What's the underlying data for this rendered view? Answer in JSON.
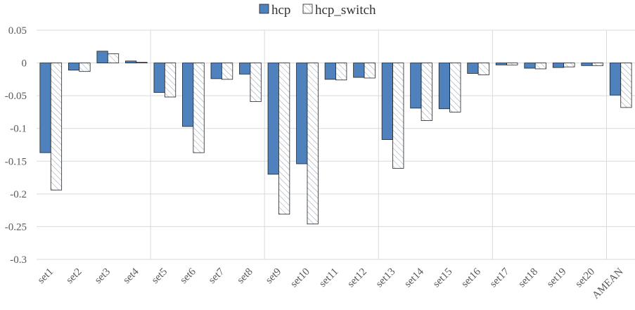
{
  "chart_data": {
    "type": "bar",
    "categories": [
      "set1",
      "set2",
      "set3",
      "set4",
      "set5",
      "set6",
      "set7",
      "set8",
      "set9",
      "set10",
      "set11",
      "set12",
      "set13",
      "set14",
      "set15",
      "set16",
      "set17",
      "set18",
      "set19",
      "set20",
      "AMEAN"
    ],
    "series": [
      {
        "name": "hcp",
        "color": "#4f81bd",
        "values": [
          -0.137,
          -0.011,
          0.018,
          0.003,
          -0.045,
          -0.097,
          -0.024,
          -0.017,
          -0.17,
          -0.154,
          -0.025,
          -0.022,
          -0.117,
          -0.069,
          -0.07,
          -0.016,
          -0.003,
          -0.008,
          -0.007,
          -0.004,
          -0.049
        ]
      },
      {
        "name": "hcp_switch",
        "color": "#8c9aaf",
        "hatch": true,
        "values": [
          -0.194,
          -0.013,
          0.014,
          0.001,
          -0.052,
          -0.137,
          -0.025,
          -0.059,
          -0.231,
          -0.246,
          -0.026,
          -0.023,
          -0.161,
          -0.088,
          -0.075,
          -0.018,
          -0.003,
          -0.009,
          -0.006,
          -0.004,
          -0.068
        ]
      }
    ],
    "ylim": [
      -0.3,
      0.05
    ],
    "yticks": [
      0.05,
      0,
      -0.05,
      -0.1,
      -0.15,
      -0.2,
      -0.25,
      -0.3
    ],
    "grid": true
  }
}
